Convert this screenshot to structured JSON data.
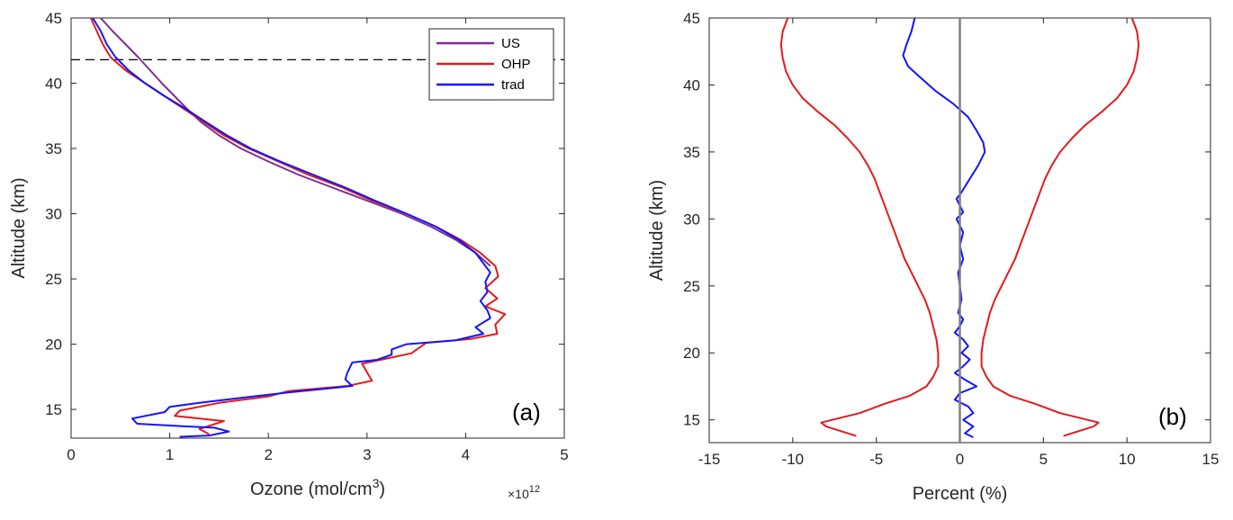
{
  "chart_data": [
    {
      "panel": "(a)",
      "type": "line",
      "xlabel": "Ozone (mol/cm",
      "xlabel_sup": "3",
      "xlabel_end": ")",
      "ylabel": "Altitude (km)",
      "xlim": [
        0,
        5
      ],
      "ylim": [
        12.8,
        45
      ],
      "x_exponent": "×10",
      "x_exponent_power": "12",
      "x_ticks": [
        "0",
        "1",
        "2",
        "3",
        "4",
        "5"
      ],
      "y_ticks": [
        "15",
        "20",
        "25",
        "30",
        "35",
        "40",
        "45"
      ],
      "legend_position": "top-right",
      "reference_line": {
        "y": 41.8,
        "style": "dashed",
        "color": "#000000"
      },
      "series": [
        {
          "name": "US",
          "color": "#7E2F8E",
          "points": [
            [
              0.3,
              45
            ],
            [
              0.42,
              44
            ],
            [
              0.55,
              43
            ],
            [
              0.68,
              42
            ],
            [
              0.8,
              41
            ],
            [
              0.92,
              40
            ],
            [
              1.05,
              39
            ],
            [
              1.18,
              38
            ],
            [
              1.32,
              37
            ],
            [
              1.5,
              36
            ],
            [
              1.72,
              35
            ],
            [
              2.0,
              34
            ],
            [
              2.3,
              33
            ],
            [
              2.65,
              32
            ],
            [
              3.0,
              31
            ],
            [
              3.35,
              30
            ],
            [
              3.65,
              29
            ],
            [
              3.9,
              28
            ],
            [
              4.1,
              27
            ],
            [
              4.25,
              26
            ]
          ]
        },
        {
          "name": "OHP",
          "color": "#E31A1C",
          "points": [
            [
              0.2,
              45
            ],
            [
              0.26,
              44
            ],
            [
              0.32,
              43
            ],
            [
              0.4,
              42
            ],
            [
              0.55,
              41
            ],
            [
              0.75,
              40
            ],
            [
              0.95,
              39
            ],
            [
              1.15,
              38
            ],
            [
              1.35,
              37
            ],
            [
              1.55,
              36
            ],
            [
              1.8,
              35
            ],
            [
              2.1,
              34
            ],
            [
              2.4,
              33
            ],
            [
              2.75,
              32
            ],
            [
              3.05,
              31
            ],
            [
              3.4,
              30
            ],
            [
              3.7,
              29
            ],
            [
              3.95,
              28
            ],
            [
              4.15,
              27
            ],
            [
              4.3,
              26
            ],
            [
              4.33,
              25.2
            ],
            [
              4.2,
              24.3
            ],
            [
              4.32,
              23.5
            ],
            [
              4.2,
              22.9
            ],
            [
              4.4,
              22.3
            ],
            [
              4.3,
              21.5
            ],
            [
              4.32,
              20.8
            ],
            [
              4.05,
              20.4
            ],
            [
              3.6,
              20.1
            ],
            [
              3.45,
              19.3
            ],
            [
              3.2,
              18.9
            ],
            [
              2.95,
              18.5
            ],
            [
              3.05,
              17.2
            ],
            [
              2.8,
              16.8
            ],
            [
              2.2,
              16.4
            ],
            [
              2.0,
              16.0
            ],
            [
              1.5,
              15.5
            ],
            [
              1.1,
              14.9
            ],
            [
              1.05,
              14.5
            ],
            [
              1.55,
              14.1
            ],
            [
              1.3,
              13.5
            ],
            [
              1.4,
              13.1
            ]
          ]
        },
        {
          "name": "trad",
          "color": "#1414FF",
          "points": [
            [
              0.22,
              45
            ],
            [
              0.3,
              44
            ],
            [
              0.36,
              43
            ],
            [
              0.45,
              42
            ],
            [
              0.58,
              41
            ],
            [
              0.75,
              40
            ],
            [
              0.95,
              39
            ],
            [
              1.17,
              38
            ],
            [
              1.37,
              37
            ],
            [
              1.58,
              36
            ],
            [
              1.82,
              35
            ],
            [
              2.12,
              34
            ],
            [
              2.45,
              33
            ],
            [
              2.78,
              32
            ],
            [
              3.08,
              31
            ],
            [
              3.4,
              30
            ],
            [
              3.7,
              29
            ],
            [
              3.93,
              28
            ],
            [
              4.1,
              27
            ],
            [
              4.2,
              26
            ],
            [
              4.25,
              25.5
            ],
            [
              4.2,
              24.8
            ],
            [
              4.22,
              24.0
            ],
            [
              4.15,
              23.3
            ],
            [
              4.22,
              22.6
            ],
            [
              4.25,
              22.0
            ],
            [
              4.1,
              21.3
            ],
            [
              4.18,
              20.8
            ],
            [
              3.9,
              20.3
            ],
            [
              3.4,
              20.0
            ],
            [
              3.25,
              19.6
            ],
            [
              3.25,
              19.2
            ],
            [
              3.1,
              18.8
            ],
            [
              2.85,
              18.6
            ],
            [
              2.8,
              17.8
            ],
            [
              2.78,
              17.3
            ],
            [
              2.85,
              16.8
            ],
            [
              2.2,
              16.3
            ],
            [
              1.85,
              16.0
            ],
            [
              1.3,
              15.5
            ],
            [
              1.0,
              15.2
            ],
            [
              0.95,
              14.8
            ],
            [
              0.62,
              14.3
            ],
            [
              0.67,
              13.9
            ],
            [
              1.15,
              13.7
            ],
            [
              1.45,
              13.6
            ],
            [
              1.6,
              13.3
            ],
            [
              1.4,
              13.0
            ],
            [
              1.1,
              12.9
            ]
          ]
        }
      ]
    },
    {
      "panel": "(b)",
      "type": "line",
      "xlabel": "Percent (%)",
      "ylabel": "Altitude (km)",
      "xlim": [
        -15,
        15
      ],
      "ylim": [
        13.3,
        45
      ],
      "x_ticks": [
        "-15",
        "-10",
        "-5",
        "0",
        "5",
        "10",
        "15"
      ],
      "y_ticks": [
        "15",
        "20",
        "25",
        "30",
        "35",
        "40",
        "45"
      ],
      "zero_line": {
        "x": 0,
        "color": "#808080"
      },
      "series": [
        {
          "color": "#E31A1C",
          "points": [
            [
              -10.3,
              45
            ],
            [
              -10.6,
              44
            ],
            [
              -10.7,
              43
            ],
            [
              -10.6,
              42
            ],
            [
              -10.4,
              41
            ],
            [
              -10.0,
              40
            ],
            [
              -9.4,
              39
            ],
            [
              -8.5,
              38
            ],
            [
              -7.5,
              37
            ],
            [
              -6.7,
              36
            ],
            [
              -6.0,
              35
            ],
            [
              -5.5,
              34
            ],
            [
              -5.1,
              33
            ],
            [
              -4.8,
              32
            ],
            [
              -4.5,
              31
            ],
            [
              -4.2,
              30
            ],
            [
              -3.9,
              29
            ],
            [
              -3.6,
              28
            ],
            [
              -3.3,
              27
            ],
            [
              -2.9,
              26
            ],
            [
              -2.5,
              25
            ],
            [
              -2.1,
              24
            ],
            [
              -1.8,
              23
            ],
            [
              -1.6,
              22
            ],
            [
              -1.4,
              21
            ],
            [
              -1.3,
              20
            ],
            [
              -1.3,
              19
            ],
            [
              -1.6,
              18.2
            ],
            [
              -2.0,
              17.5
            ],
            [
              -3.0,
              16.8
            ],
            [
              -4.5,
              16.2
            ],
            [
              -6.0,
              15.5
            ],
            [
              -8.3,
              14.8
            ],
            [
              -8.0,
              14.5
            ],
            [
              -6.2,
              13.8
            ]
          ]
        },
        {
          "color": "#E31A1C",
          "points": [
            [
              10.3,
              45
            ],
            [
              10.6,
              44
            ],
            [
              10.7,
              43
            ],
            [
              10.6,
              42
            ],
            [
              10.4,
              41
            ],
            [
              10.0,
              40
            ],
            [
              9.4,
              39
            ],
            [
              8.5,
              38
            ],
            [
              7.5,
              37
            ],
            [
              6.7,
              36
            ],
            [
              6.0,
              35
            ],
            [
              5.5,
              34
            ],
            [
              5.1,
              33
            ],
            [
              4.8,
              32
            ],
            [
              4.5,
              31
            ],
            [
              4.2,
              30
            ],
            [
              3.9,
              29
            ],
            [
              3.6,
              28
            ],
            [
              3.3,
              27
            ],
            [
              2.9,
              26
            ],
            [
              2.5,
              25
            ],
            [
              2.1,
              24
            ],
            [
              1.8,
              23
            ],
            [
              1.6,
              22
            ],
            [
              1.4,
              21
            ],
            [
              1.3,
              20
            ],
            [
              1.3,
              19
            ],
            [
              1.6,
              18.2
            ],
            [
              2.0,
              17.5
            ],
            [
              3.0,
              16.8
            ],
            [
              4.5,
              16.2
            ],
            [
              6.0,
              15.5
            ],
            [
              8.3,
              14.8
            ],
            [
              8.0,
              14.5
            ],
            [
              6.2,
              13.8
            ]
          ]
        },
        {
          "color": "#1414FF",
          "points": [
            [
              -2.7,
              45
            ],
            [
              -2.9,
              44
            ],
            [
              -3.2,
              43
            ],
            [
              -3.4,
              42.2
            ],
            [
              -3.1,
              41.4
            ],
            [
              -2.4,
              40.6
            ],
            [
              -1.5,
              39.6
            ],
            [
              -0.4,
              38.6
            ],
            [
              0.5,
              37.6
            ],
            [
              1.0,
              36.6
            ],
            [
              1.4,
              35.7
            ],
            [
              1.5,
              35.0
            ],
            [
              1.1,
              34.0
            ],
            [
              0.6,
              33.0
            ],
            [
              0.1,
              32.0
            ],
            [
              -0.2,
              31.5
            ],
            [
              0.0,
              31.0
            ],
            [
              0.2,
              30.5
            ],
            [
              -0.2,
              30.0
            ],
            [
              0.0,
              29.5
            ],
            [
              0.2,
              29.0
            ],
            [
              0.0,
              28.0
            ],
            [
              0.2,
              27.0
            ],
            [
              -0.1,
              26.0
            ],
            [
              0.0,
              25.0
            ],
            [
              0.1,
              24.0
            ],
            [
              -0.1,
              23.0
            ],
            [
              0.2,
              22.5
            ],
            [
              0.0,
              22.0
            ],
            [
              -0.3,
              21.5
            ],
            [
              0.2,
              21.0
            ],
            [
              0.5,
              20.5
            ],
            [
              0.1,
              20.0
            ],
            [
              0.6,
              19.5
            ],
            [
              0.2,
              19.0
            ],
            [
              -0.3,
              18.5
            ],
            [
              0.3,
              18.0
            ],
            [
              1.0,
              17.5
            ],
            [
              0.0,
              17.0
            ],
            [
              -0.3,
              16.5
            ],
            [
              0.5,
              16.0
            ],
            [
              0.8,
              15.5
            ],
            [
              0.2,
              15.0
            ],
            [
              0.8,
              14.5
            ],
            [
              0.3,
              14.0
            ],
            [
              0.8,
              13.7
            ]
          ]
        }
      ]
    }
  ]
}
